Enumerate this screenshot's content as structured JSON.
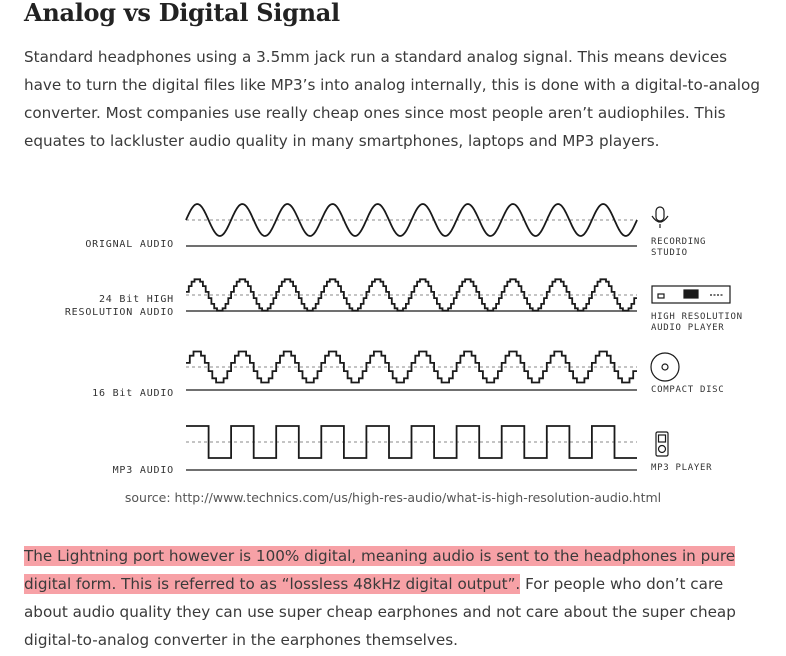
{
  "article": {
    "heading": "Analog vs Digital Signal",
    "paragraph1": "Standard headphones using a 3.5mm jack run a standard analog signal. This means devices have to turn the digital files like MP3’s into analog internally, this is done with a digital-to-analog converter. Most companies use really cheap ones since most people aren’t audiophiles. This equates to lackluster audio quality in many smartphones, laptops and MP3 players.",
    "paragraph2_highlight": "The Lightning port however is 100% digital, meaning audio is sent to the headphones in pure digital form. This is referred to as “lossless 48kHz digital output”.",
    "paragraph2_rest": " For people who don’t care about audio quality they can use super cheap earphones and not care about the super cheap digital-to-analog converter in the earphones themselves."
  },
  "diagram": {
    "rows": [
      {
        "left_label": [
          "ORIGNAL AUDIO"
        ],
        "right_label": [
          "RECORDING",
          "STUDIO"
        ],
        "wave": "sine",
        "icon": "microphone-icon"
      },
      {
        "left_label": [
          "24 Bit HIGH",
          "RESOLUTION AUDIO"
        ],
        "right_label": [
          "HIGH RESOLUTION",
          "AUDIO PLAYER"
        ],
        "wave": "fine-step",
        "icon": "audio-player-icon"
      },
      {
        "left_label": [
          "16 Bit AUDIO"
        ],
        "right_label": [
          "COMPACT DISC"
        ],
        "wave": "medium-step",
        "icon": "compact-disc-icon"
      },
      {
        "left_label": [
          "MP3 AUDIO"
        ],
        "right_label": [
          "MP3 PLAYER"
        ],
        "wave": "coarse-step",
        "icon": "mp3-player-icon"
      }
    ],
    "cycles": 10,
    "source": "source: http://www.technics.com/us/high-res-audio/what-is-high-resolution-audio.html"
  },
  "colors": {
    "highlight": "#f7a1a6",
    "text": "#3a3a3a",
    "heading": "#222222",
    "stroke": "#1a1a1a"
  }
}
